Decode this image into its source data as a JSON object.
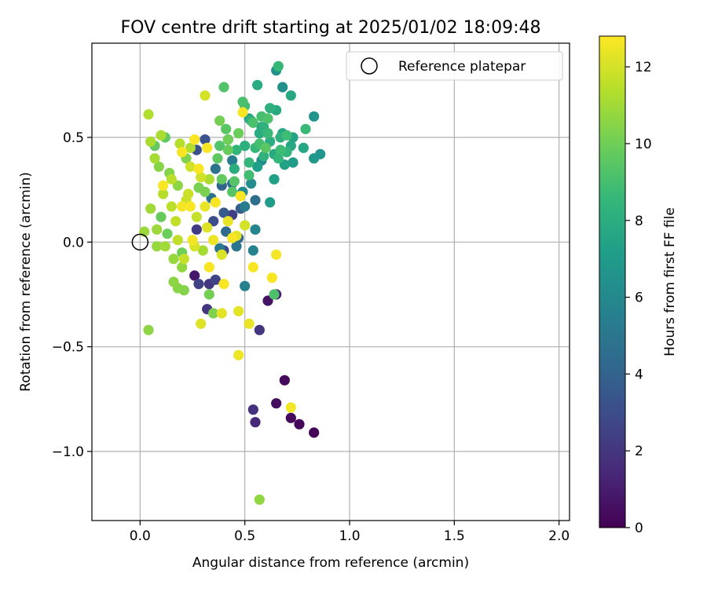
{
  "chart_data": {
    "type": "scatter",
    "title": "FOV centre drift starting at 2025/01/02 18:09:48",
    "xlabel": "Angular distance from reference (arcmin)",
    "ylabel": "Rotation from reference (arcmin)",
    "xlim": [
      -0.23,
      2.05
    ],
    "ylim": [
      -1.33,
      0.95
    ],
    "xticks": [
      0.0,
      0.5,
      1.0,
      1.5,
      2.0
    ],
    "xtick_labels": [
      "0.0",
      "0.5",
      "1.0",
      "1.5",
      "2.0"
    ],
    "yticks": [
      -1.0,
      -0.5,
      0.0,
      0.5
    ],
    "ytick_labels": [
      "−1.0",
      "−0.5",
      "0.0",
      "0.5"
    ],
    "grid": true,
    "legend": {
      "position": "top-right",
      "entries": [
        "Reference platepar"
      ]
    },
    "colorbar": {
      "label": "Hours from first FF file",
      "range": [
        0,
        12.8
      ],
      "ticks": [
        0,
        2,
        4,
        6,
        8,
        10,
        12
      ],
      "tick_labels": [
        "0",
        "2",
        "4",
        "6",
        "8",
        "10",
        "12"
      ],
      "colormap": "viridis"
    },
    "reference_point": {
      "x": 0.0,
      "y": 0.0,
      "name": "Reference platepar"
    },
    "points": [
      {
        "x": 0.83,
        "y": -0.91,
        "h": 0.1
      },
      {
        "x": 0.76,
        "y": -0.87,
        "h": 0.2
      },
      {
        "x": 0.72,
        "y": -0.84,
        "h": 0.3
      },
      {
        "x": 0.69,
        "y": -0.66,
        "h": 0.3
      },
      {
        "x": 0.65,
        "y": -0.77,
        "h": 0.5
      },
      {
        "x": 0.61,
        "y": -0.28,
        "h": 0.6
      },
      {
        "x": 0.26,
        "y": -0.16,
        "h": 0.8
      },
      {
        "x": 0.65,
        "y": -0.25,
        "h": 1.0
      },
      {
        "x": 0.55,
        "y": -0.86,
        "h": 1.4
      },
      {
        "x": 0.54,
        "y": -0.8,
        "h": 1.8
      },
      {
        "x": 0.57,
        "y": -0.42,
        "h": 1.9
      },
      {
        "x": 0.32,
        "y": -0.32,
        "h": 2.0
      },
      {
        "x": 0.33,
        "y": -0.2,
        "h": 2.1
      },
      {
        "x": 0.27,
        "y": 0.06,
        "h": 2.3
      },
      {
        "x": 0.44,
        "y": 0.13,
        "h": 2.4
      },
      {
        "x": 0.28,
        "y": -0.2,
        "h": 2.5
      },
      {
        "x": 0.36,
        "y": -0.18,
        "h": 2.6
      },
      {
        "x": 0.4,
        "y": -0.04,
        "h": 2.8
      },
      {
        "x": 0.35,
        "y": 0.1,
        "h": 3.0
      },
      {
        "x": 0.27,
        "y": 0.44,
        "h": 3.1
      },
      {
        "x": 0.31,
        "y": 0.49,
        "h": 3.3
      },
      {
        "x": 0.42,
        "y": 0.49,
        "h": 3.5
      },
      {
        "x": 0.4,
        "y": 0.14,
        "h": 3.6
      },
      {
        "x": 0.48,
        "y": 0.16,
        "h": 3.8
      },
      {
        "x": 0.47,
        "y": 0.02,
        "h": 4.0
      },
      {
        "x": 0.39,
        "y": 0.27,
        "h": 4.1
      },
      {
        "x": 0.44,
        "y": 0.28,
        "h": 4.3
      },
      {
        "x": 0.41,
        "y": 0.05,
        "h": 4.4
      },
      {
        "x": 0.55,
        "y": 0.2,
        "h": 4.6
      },
      {
        "x": 0.34,
        "y": 0.21,
        "h": 4.7
      },
      {
        "x": 0.36,
        "y": 0.35,
        "h": 4.9
      },
      {
        "x": 0.46,
        "y": -0.02,
        "h": 5.0
      },
      {
        "x": 0.38,
        "y": -0.03,
        "h": 5.1
      },
      {
        "x": 0.5,
        "y": 0.17,
        "h": 5.3
      },
      {
        "x": 0.44,
        "y": 0.39,
        "h": 5.4
      },
      {
        "x": 0.5,
        "y": -0.21,
        "h": 5.6
      },
      {
        "x": 0.54,
        "y": -0.04,
        "h": 5.7
      },
      {
        "x": 0.55,
        "y": 0.06,
        "h": 5.8
      },
      {
        "x": 0.49,
        "y": 0.24,
        "h": 6.0
      },
      {
        "x": 0.58,
        "y": 0.39,
        "h": 6.1
      },
      {
        "x": 0.53,
        "y": 0.28,
        "h": 6.2
      },
      {
        "x": 0.68,
        "y": 0.74,
        "h": 6.4
      },
      {
        "x": 0.65,
        "y": 0.82,
        "h": 6.5
      },
      {
        "x": 0.83,
        "y": 0.6,
        "h": 6.6
      },
      {
        "x": 0.86,
        "y": 0.42,
        "h": 6.7
      },
      {
        "x": 0.83,
        "y": 0.4,
        "h": 6.9
      },
      {
        "x": 0.73,
        "y": 0.38,
        "h": 7.0
      },
      {
        "x": 0.62,
        "y": 0.19,
        "h": 7.1
      },
      {
        "x": 0.56,
        "y": 0.36,
        "h": 7.2
      },
      {
        "x": 0.64,
        "y": 0.3,
        "h": 7.3
      },
      {
        "x": 0.69,
        "y": 0.37,
        "h": 7.4
      },
      {
        "x": 0.73,
        "y": 0.5,
        "h": 7.5
      },
      {
        "x": 0.78,
        "y": 0.45,
        "h": 7.6
      },
      {
        "x": 0.72,
        "y": 0.7,
        "h": 7.7
      },
      {
        "x": 0.65,
        "y": 0.63,
        "h": 7.8
      },
      {
        "x": 0.56,
        "y": 0.75,
        "h": 7.9
      },
      {
        "x": 0.62,
        "y": 0.48,
        "h": 8.0
      },
      {
        "x": 0.67,
        "y": 0.5,
        "h": 8.1
      },
      {
        "x": 0.59,
        "y": 0.55,
        "h": 8.2
      },
      {
        "x": 0.53,
        "y": 0.58,
        "h": 8.3
      },
      {
        "x": 0.46,
        "y": 0.44,
        "h": 8.4
      },
      {
        "x": 0.52,
        "y": 0.38,
        "h": 8.5
      },
      {
        "x": 0.66,
        "y": 0.84,
        "h": 8.6
      },
      {
        "x": 0.79,
        "y": 0.54,
        "h": 8.7
      },
      {
        "x": 0.7,
        "y": 0.51,
        "h": 8.8
      },
      {
        "x": 0.5,
        "y": 0.65,
        "h": 8.9
      },
      {
        "x": 0.57,
        "y": 0.47,
        "h": 9.0
      },
      {
        "x": 0.49,
        "y": 0.67,
        "h": 9.1
      },
      {
        "x": 0.61,
        "y": 0.59,
        "h": 9.2
      },
      {
        "x": 0.4,
        "y": 0.74,
        "h": 9.3
      },
      {
        "x": 0.45,
        "y": 0.29,
        "h": 9.4
      },
      {
        "x": 0.6,
        "y": 0.45,
        "h": 9.5
      },
      {
        "x": 0.37,
        "y": 0.4,
        "h": 9.6
      },
      {
        "x": 0.39,
        "y": 0.3,
        "h": 9.7
      },
      {
        "x": 0.42,
        "y": 0.44,
        "h": 9.8
      },
      {
        "x": 0.47,
        "y": 0.52,
        "h": 9.9
      },
      {
        "x": 0.42,
        "y": 0.49,
        "h": 10.0
      },
      {
        "x": 0.38,
        "y": 0.58,
        "h": 10.1
      },
      {
        "x": 0.31,
        "y": 0.24,
        "h": 10.2
      },
      {
        "x": 0.35,
        "y": -0.34,
        "h": 10.3
      },
      {
        "x": 0.21,
        "y": -0.23,
        "h": 10.4
      },
      {
        "x": 0.18,
        "y": -0.22,
        "h": 10.5
      },
      {
        "x": 0.16,
        "y": -0.19,
        "h": 10.6
      },
      {
        "x": 0.04,
        "y": -0.42,
        "h": 10.6
      },
      {
        "x": 0.57,
        "y": -1.23,
        "h": 10.7
      },
      {
        "x": 0.08,
        "y": -0.02,
        "h": 10.8
      },
      {
        "x": 0.02,
        "y": 0.05,
        "h": 10.9
      },
      {
        "x": 0.05,
        "y": 0.16,
        "h": 11.0
      },
      {
        "x": 0.07,
        "y": 0.4,
        "h": 11.1
      },
      {
        "x": 0.05,
        "y": 0.48,
        "h": 11.2
      },
      {
        "x": 0.1,
        "y": 0.51,
        "h": 11.2
      },
      {
        "x": 0.04,
        "y": 0.61,
        "h": 11.3
      },
      {
        "x": 0.11,
        "y": 0.23,
        "h": 11.4
      },
      {
        "x": 0.15,
        "y": 0.17,
        "h": 11.5
      },
      {
        "x": 0.18,
        "y": 0.01,
        "h": 11.6
      },
      {
        "x": 0.21,
        "y": -0.08,
        "h": 11.7
      },
      {
        "x": 0.22,
        "y": 0.2,
        "h": 11.8
      },
      {
        "x": 0.24,
        "y": 0.36,
        "h": 11.9
      },
      {
        "x": 0.31,
        "y": 0.7,
        "h": 12.0
      },
      {
        "x": 0.26,
        "y": -0.02,
        "h": 12.1
      },
      {
        "x": 0.29,
        "y": -0.39,
        "h": 12.2
      },
      {
        "x": 0.39,
        "y": -0.34,
        "h": 12.3
      },
      {
        "x": 0.47,
        "y": -0.33,
        "h": 12.3
      },
      {
        "x": 0.52,
        "y": -0.39,
        "h": 12.4
      },
      {
        "x": 0.47,
        "y": -0.54,
        "h": 12.5
      },
      {
        "x": 0.72,
        "y": -0.79,
        "h": 12.6
      },
      {
        "x": 0.65,
        "y": -0.06,
        "h": 12.6
      },
      {
        "x": 0.63,
        "y": -0.17,
        "h": 12.7
      },
      {
        "x": 0.4,
        "y": -0.2,
        "h": 12.7
      },
      {
        "x": 0.33,
        "y": -0.12,
        "h": 12.7
      },
      {
        "x": 0.54,
        "y": -0.12,
        "h": 12.7
      },
      {
        "x": 0.44,
        "y": 0.02,
        "h": 12.7
      },
      {
        "x": 0.36,
        "y": 0.19,
        "h": 12.7
      },
      {
        "x": 0.28,
        "y": 0.35,
        "h": 12.7
      },
      {
        "x": 0.32,
        "y": 0.45,
        "h": 12.7
      },
      {
        "x": 0.2,
        "y": 0.43,
        "h": 12.7
      },
      {
        "x": 0.26,
        "y": 0.49,
        "h": 12.7
      },
      {
        "x": 0.49,
        "y": 0.62,
        "h": 12.7
      },
      {
        "x": 0.48,
        "y": 0.22,
        "h": 12.7
      },
      {
        "x": 0.11,
        "y": 0.27,
        "h": 12.7
      },
      {
        "x": 0.24,
        "y": 0.17,
        "h": 12.7
      },
      {
        "x": 0.2,
        "y": 0.17,
        "h": 12.6
      },
      {
        "x": 0.25,
        "y": 0.01,
        "h": 12.6
      },
      {
        "x": 0.35,
        "y": 0.01,
        "h": 12.5
      },
      {
        "x": 0.31,
        "y": 0.17,
        "h": 12.4
      },
      {
        "x": 0.42,
        "y": 0.1,
        "h": 12.4
      },
      {
        "x": 0.46,
        "y": 0.03,
        "h": 12.3
      },
      {
        "x": 0.32,
        "y": 0.07,
        "h": 12.2
      },
      {
        "x": 0.39,
        "y": -0.06,
        "h": 12.1
      },
      {
        "x": 0.5,
        "y": 0.08,
        "h": 12.0
      },
      {
        "x": 0.29,
        "y": 0.31,
        "h": 11.9
      },
      {
        "x": 0.23,
        "y": 0.23,
        "h": 11.8
      },
      {
        "x": 0.27,
        "y": 0.12,
        "h": 11.7
      },
      {
        "x": 0.17,
        "y": 0.1,
        "h": 11.6
      },
      {
        "x": 0.15,
        "y": 0.3,
        "h": 11.5
      },
      {
        "x": 0.19,
        "y": 0.47,
        "h": 11.4
      },
      {
        "x": 0.24,
        "y": 0.45,
        "h": 11.3
      },
      {
        "x": 0.33,
        "y": 0.3,
        "h": 11.2
      },
      {
        "x": 0.3,
        "y": -0.04,
        "h": 11.1
      },
      {
        "x": 0.12,
        "y": -0.02,
        "h": 11.0
      },
      {
        "x": 0.08,
        "y": 0.06,
        "h": 10.9
      },
      {
        "x": 0.16,
        "y": -0.08,
        "h": 10.8
      },
      {
        "x": 0.2,
        "y": -0.12,
        "h": 10.7
      },
      {
        "x": 0.18,
        "y": 0.27,
        "h": 10.6
      },
      {
        "x": 0.09,
        "y": 0.36,
        "h": 10.5
      },
      {
        "x": 0.14,
        "y": 0.33,
        "h": 10.4
      },
      {
        "x": 0.22,
        "y": 0.4,
        "h": 10.3
      },
      {
        "x": 0.28,
        "y": 0.26,
        "h": 10.2
      },
      {
        "x": 0.33,
        "y": -0.25,
        "h": 10.1
      },
      {
        "x": 0.2,
        "y": -0.05,
        "h": 10.0
      },
      {
        "x": 0.13,
        "y": 0.04,
        "h": 9.9
      },
      {
        "x": 0.1,
        "y": 0.12,
        "h": 9.8
      },
      {
        "x": 0.07,
        "y": 0.46,
        "h": 9.7
      },
      {
        "x": 0.12,
        "y": 0.5,
        "h": 9.6
      },
      {
        "x": 0.41,
        "y": 0.54,
        "h": 9.5
      },
      {
        "x": 0.44,
        "y": 0.24,
        "h": 9.4
      },
      {
        "x": 0.38,
        "y": 0.46,
        "h": 9.3
      },
      {
        "x": 0.64,
        "y": -0.25,
        "h": 9.2
      },
      {
        "x": 0.54,
        "y": 0.57,
        "h": 9.1
      },
      {
        "x": 0.58,
        "y": 0.6,
        "h": 9.0
      },
      {
        "x": 0.52,
        "y": 0.32,
        "h": 8.9
      },
      {
        "x": 0.67,
        "y": 0.44,
        "h": 8.8
      },
      {
        "x": 0.61,
        "y": 0.52,
        "h": 8.7
      },
      {
        "x": 0.55,
        "y": 0.45,
        "h": 8.6
      },
      {
        "x": 0.66,
        "y": 0.4,
        "h": 8.5
      },
      {
        "x": 0.7,
        "y": 0.43,
        "h": 8.4
      },
      {
        "x": 0.59,
        "y": 0.41,
        "h": 8.3
      },
      {
        "x": 0.62,
        "y": 0.64,
        "h": 8.2
      },
      {
        "x": 0.5,
        "y": 0.46,
        "h": 8.1
      },
      {
        "x": 0.45,
        "y": 0.35,
        "h": 8.0
      },
      {
        "x": 0.57,
        "y": 0.52,
        "h": 7.9
      },
      {
        "x": 0.64,
        "y": 0.42,
        "h": 7.8
      },
      {
        "x": 0.72,
        "y": 0.46,
        "h": 7.7
      },
      {
        "x": 0.68,
        "y": 0.52,
        "h": 7.6
      },
      {
        "x": 0.58,
        "y": 0.55,
        "h": 7.5
      },
      {
        "x": 0.52,
        "y": 0.59,
        "h": 7.4
      }
    ]
  }
}
